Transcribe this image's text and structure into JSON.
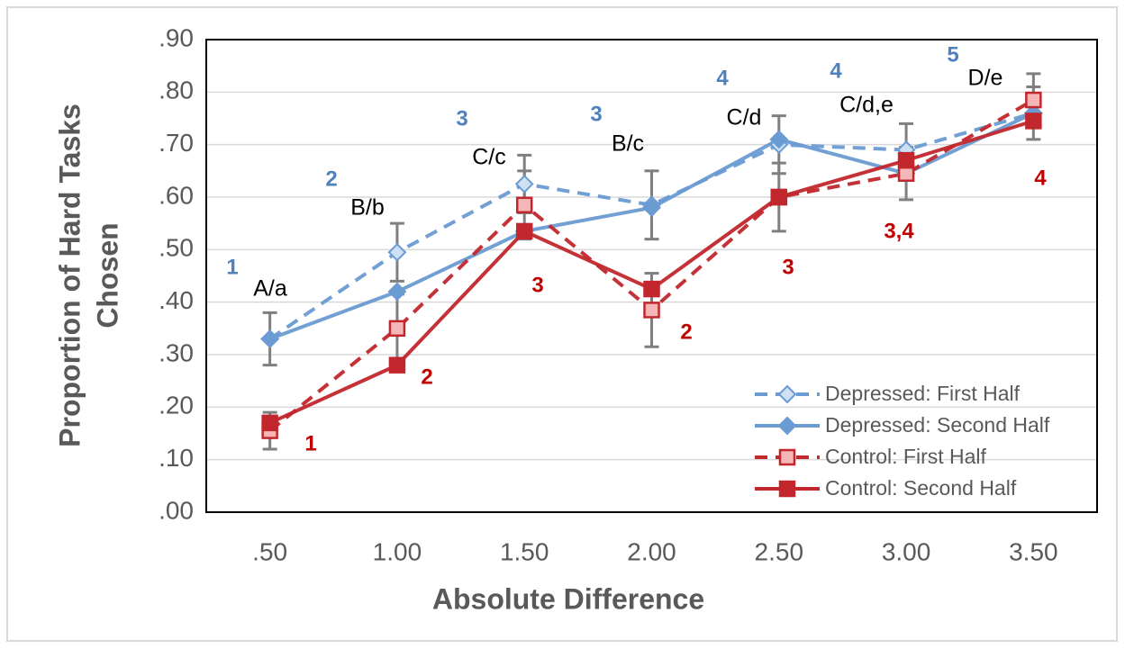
{
  "chart_data": {
    "type": "line",
    "xlabel": "Absolute Difference",
    "ylabel": [
      "Proportion of Hard Tasks",
      "Chosen"
    ],
    "categories": [
      ".50",
      "1.00",
      "1.50",
      "2.00",
      "2.50",
      "3.00",
      "3.50"
    ],
    "ylim": [
      0,
      0.9
    ],
    "yticks": [
      {
        "value": 0,
        "label": ".00"
      },
      {
        "value": 0.1,
        "label": ".10"
      },
      {
        "value": 0.2,
        "label": ".20"
      },
      {
        "value": 0.3,
        "label": ".30"
      },
      {
        "value": 0.4,
        "label": ".40"
      },
      {
        "value": 0.5,
        "label": ".50"
      },
      {
        "value": 0.6,
        "label": ".60"
      },
      {
        "value": 0.7,
        "label": ".70"
      },
      {
        "value": 0.8,
        "label": ".80"
      },
      {
        "value": 0.9,
        "label": ".90"
      }
    ],
    "grid": true,
    "legend": "lower right",
    "series": [
      {
        "name": "Depressed: First Half",
        "color": "#6a9bd2",
        "dash": true,
        "marker": "diamond",
        "filled": false,
        "values": [
          0.33,
          0.495,
          0.625,
          0.585,
          0.7,
          0.69,
          0.76
        ],
        "errors": [
          0.05,
          0.055,
          0.055,
          0.065,
          0.055,
          0.05,
          0.05
        ]
      },
      {
        "name": "Depressed: Second Half",
        "color": "#6a9bd2",
        "dash": false,
        "marker": "diamond",
        "filled": true,
        "values": [
          0.33,
          0.42,
          0.535,
          0.58,
          0.71,
          0.645,
          0.76
        ]
      },
      {
        "name": "Control: First Half",
        "color": "#c1272d",
        "dash": true,
        "marker": "square",
        "filled": false,
        "values": [
          0.155,
          0.35,
          0.585,
          0.385,
          0.6,
          0.645,
          0.785
        ],
        "errors": [
          0.035,
          0.065,
          0.065,
          0.07,
          0.065,
          0.05,
          0.05
        ]
      },
      {
        "name": "Control: Second Half",
        "color": "#c1272d",
        "dash": false,
        "marker": "square",
        "filled": true,
        "values": [
          0.17,
          0.28,
          0.535,
          0.425,
          0.6,
          0.67,
          0.745
        ]
      }
    ],
    "annotations": [
      {
        "text": "1",
        "color": "#4f81bd"
      },
      {
        "text": "2",
        "color": "#4f81bd"
      },
      {
        "text": "3",
        "color": "#4f81bd"
      },
      {
        "text": "3",
        "color": "#4f81bd"
      },
      {
        "text": "4",
        "color": "#4f81bd"
      },
      {
        "text": "4",
        "color": "#4f81bd"
      },
      {
        "text": "5",
        "color": "#4f81bd"
      },
      {
        "text": "A/a",
        "color": "#000000"
      },
      {
        "text": "B/b",
        "color": "#000000"
      },
      {
        "text": "C/c",
        "color": "#000000"
      },
      {
        "text": "B/c",
        "color": "#000000"
      },
      {
        "text": "C/d",
        "color": "#000000"
      },
      {
        "text": "C/d,e",
        "color": "#000000"
      },
      {
        "text": "D/e",
        "color": "#000000"
      },
      {
        "text": "1",
        "color": "#c00000"
      },
      {
        "text": "2",
        "color": "#c00000"
      },
      {
        "text": "3",
        "color": "#c00000"
      },
      {
        "text": "2",
        "color": "#c00000"
      },
      {
        "text": "3",
        "color": "#c00000"
      },
      {
        "text": "3,4",
        "color": "#c00000"
      },
      {
        "text": "4",
        "color": "#c00000"
      }
    ]
  }
}
